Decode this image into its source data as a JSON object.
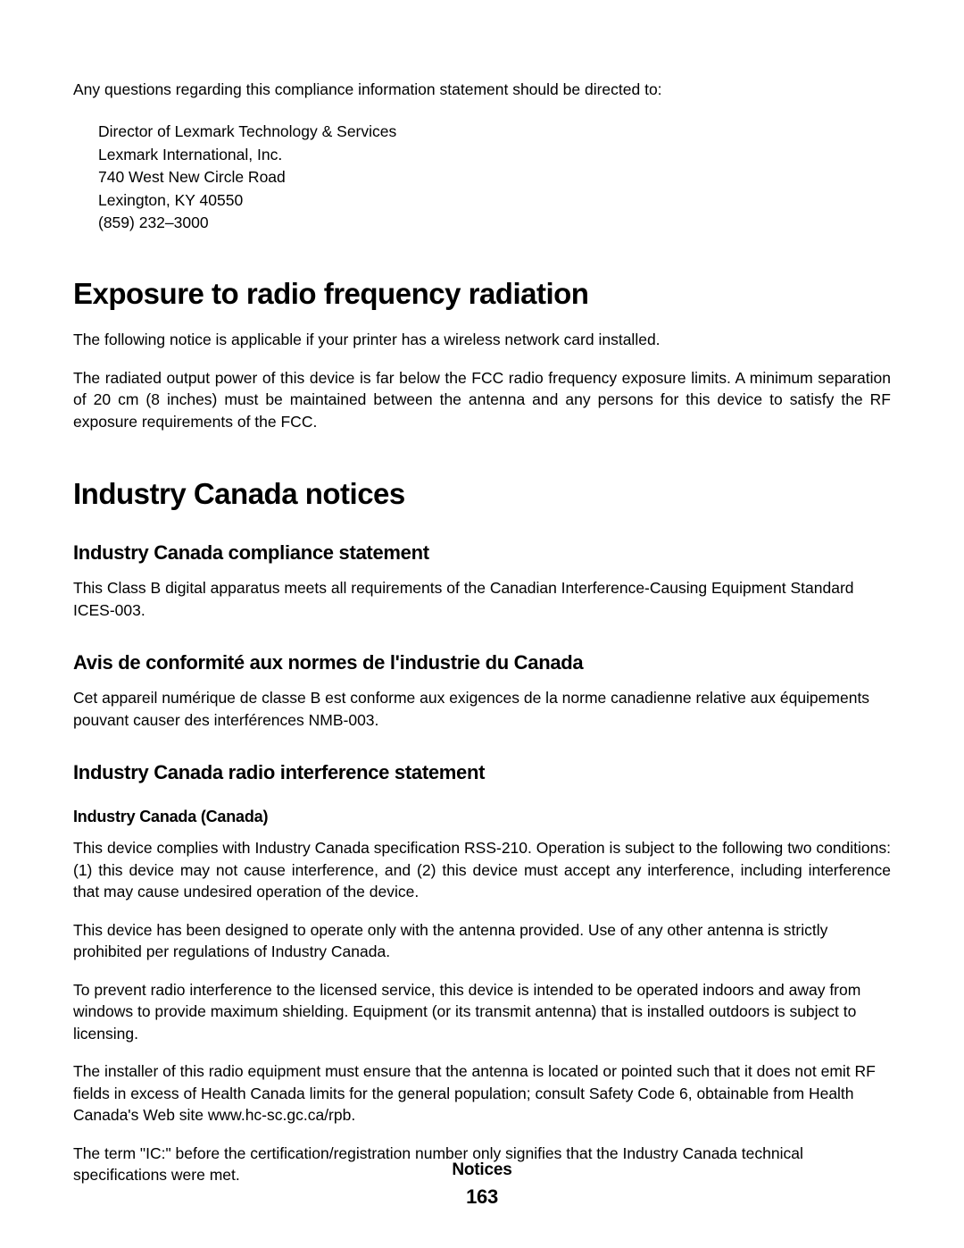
{
  "intro": "Any questions regarding this compliance information statement should be directed to:",
  "address": {
    "line1": "Director of Lexmark Technology & Services",
    "line2": "Lexmark International, Inc.",
    "line3": "740 West New Circle Road",
    "line4": "Lexington, KY 40550",
    "line5": "(859) 232–3000"
  },
  "sec1": {
    "title": "Exposure to radio frequency radiation",
    "p1": "The following notice is applicable if your printer has a wireless network card installed.",
    "p2": "The radiated output power of this device is far below the FCC radio frequency exposure limits. A minimum separation of 20 cm (8 inches) must be maintained between the antenna and any persons for this device to satisfy the RF exposure requirements of the FCC."
  },
  "sec2": {
    "title": "Industry Canada notices",
    "sub1": {
      "title": "Industry Canada compliance statement",
      "p1": "This Class B digital apparatus meets all requirements of the Canadian Interference-Causing Equipment Standard ICES-003."
    },
    "sub2": {
      "title": "Avis de conformité aux normes de l'industrie du Canada",
      "p1": "Cet appareil numérique de classe B est conforme aux exigences de la norme canadienne relative aux équipements pouvant causer des interférences NMB-003."
    },
    "sub3": {
      "title": "Industry Canada radio interference statement",
      "subhead": "Industry Canada (Canada)",
      "p1": "This device complies with Industry Canada specification RSS-210. Operation is subject to the following two conditions: (1) this device may not cause interference, and (2) this device must accept any interference, including interference that may cause undesired operation of the device.",
      "p2": "This device has been designed to operate only with the antenna provided. Use of any other antenna is strictly prohibited per regulations of Industry Canada.",
      "p3": "To prevent radio interference to the licensed service, this device is intended to be operated indoors and away from windows to provide maximum shielding. Equipment (or its transmit antenna) that is installed outdoors is subject to licensing.",
      "p4": "The installer of this radio equipment must ensure that the antenna is located or pointed such that it does not emit RF fields in excess of Health Canada limits for the general population; consult Safety Code 6, obtainable from Health Canada's Web site www.hc-sc.gc.ca/rpb.",
      "p5": "The term \"IC:\" before the certification/registration number only signifies that the Industry Canada technical specifications were met."
    }
  },
  "footer": {
    "label": "Notices",
    "pagenum": "163"
  }
}
